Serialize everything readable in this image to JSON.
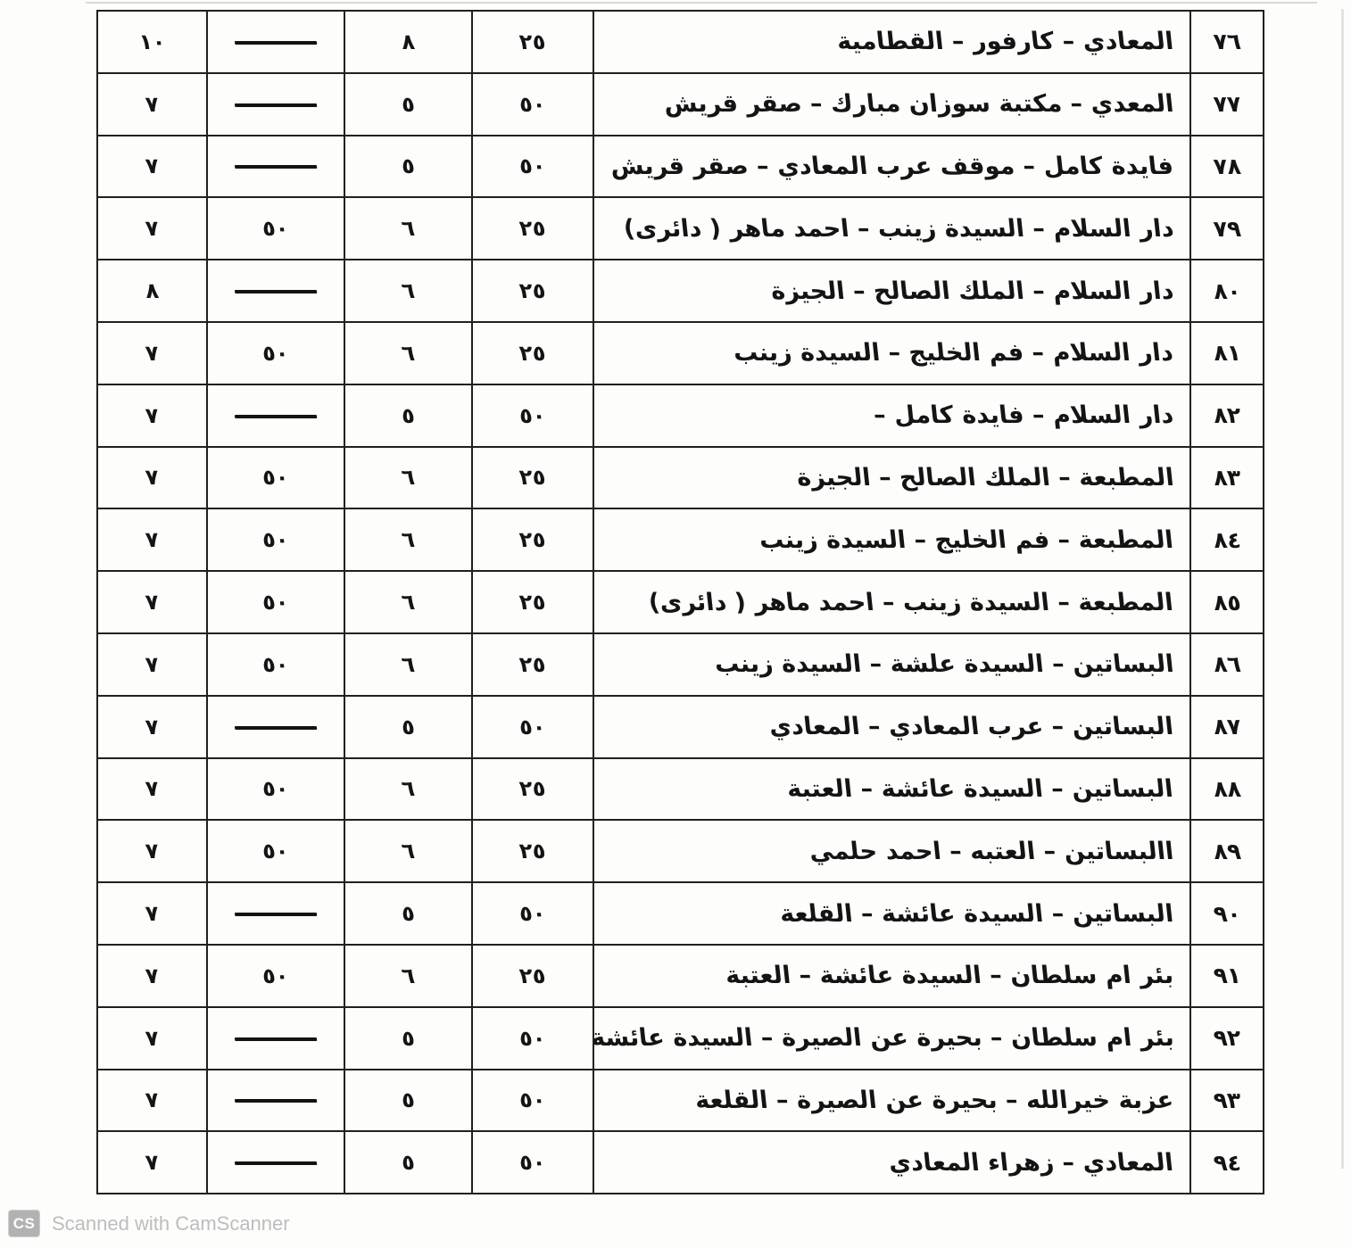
{
  "page": {
    "background_color": "#fdfdfc",
    "table_border_color": "#222018",
    "text_color": "#141414",
    "watermark_color": "#bdbdbd"
  },
  "table": {
    "direction": "rtl",
    "columns": [
      "row_number",
      "route_name",
      "value_1",
      "value_2",
      "value_3",
      "value_4"
    ],
    "dash_symbol": "—",
    "rows": [
      {
        "no": "٧٦",
        "route": "المعادي – كارفور – القطامية",
        "v1": "٢٥",
        "v2": "٨",
        "v3": "—",
        "v4": "١٠"
      },
      {
        "no": "٧٧",
        "route": "المعدي – مكتبة سوزان مبارك – صقر قريش",
        "v1": "٥٠",
        "v2": "٥",
        "v3": "—",
        "v4": "٧"
      },
      {
        "no": "٧٨",
        "route": "فايدة كامل – موقف عرب المعادي – صقر قريش",
        "v1": "٥٠",
        "v2": "٥",
        "v3": "—",
        "v4": "٧"
      },
      {
        "no": "٧٩",
        "route": "دار السلام – السيدة زينب – احمد ماهر ( دائرى)",
        "v1": "٢٥",
        "v2": "٦",
        "v3": "٥٠",
        "v4": "٧"
      },
      {
        "no": "٨٠",
        "route": "دار السلام – الملك الصالح – الجيزة",
        "v1": "٢٥",
        "v2": "٦",
        "v3": "—",
        "v4": "٨"
      },
      {
        "no": "٨١",
        "route": "دار السلام – فم الخليج – السيدة زينب",
        "v1": "٢٥",
        "v2": "٦",
        "v3": "٥٠",
        "v4": "٧"
      },
      {
        "no": "٨٢",
        "route": "دار السلام – فايدة كامل –",
        "v1": "٥٠",
        "v2": "٥",
        "v3": "—",
        "v4": "٧"
      },
      {
        "no": "٨٣",
        "route": "المطبعة – الملك الصالح – الجيزة",
        "v1": "٢٥",
        "v2": "٦",
        "v3": "٥٠",
        "v4": "٧"
      },
      {
        "no": "٨٤",
        "route": "المطبعة – فم الخليج – السيدة زينب",
        "v1": "٢٥",
        "v2": "٦",
        "v3": "٥٠",
        "v4": "٧"
      },
      {
        "no": "٨٥",
        "route": "المطبعة – السيدة زينب – احمد ماهر ( دائرى)",
        "v1": "٢٥",
        "v2": "٦",
        "v3": "٥٠",
        "v4": "٧"
      },
      {
        "no": "٨٦",
        "route": "البساتين – السيدة علشة – السيدة زينب",
        "v1": "٢٥",
        "v2": "٦",
        "v3": "٥٠",
        "v4": "٧"
      },
      {
        "no": "٨٧",
        "route": "البساتين – عرب المعادي – المعادي",
        "v1": "٥٠",
        "v2": "٥",
        "v3": "—",
        "v4": "٧"
      },
      {
        "no": "٨٨",
        "route": "البساتين – السيدة عائشة – العتبة",
        "v1": "٢٥",
        "v2": "٦",
        "v3": "٥٠",
        "v4": "٧"
      },
      {
        "no": "٨٩",
        "route": "االبساتين – العتبه – احمد حلمي",
        "v1": "٢٥",
        "v2": "٦",
        "v3": "٥٠",
        "v4": "٧"
      },
      {
        "no": "٩٠",
        "route": "البساتين – السيدة عائشة – القلعة",
        "v1": "٥٠",
        "v2": "٥",
        "v3": "—",
        "v4": "٧"
      },
      {
        "no": "٩١",
        "route": "بئر ام سلطان – السيدة عائشة – العتبة",
        "v1": "٢٥",
        "v2": "٦",
        "v3": "٥٠",
        "v4": "٧"
      },
      {
        "no": "٩٢",
        "route": "بئر ام سلطان – بحيرة عن الصيرة – السيدة عائشة",
        "v1": "٥٠",
        "v2": "٥",
        "v3": "—",
        "v4": "٧"
      },
      {
        "no": "٩٣",
        "route": "عزبة خيرالله – بحيرة عن الصيرة – القلعة",
        "v1": "٥٠",
        "v2": "٥",
        "v3": "—",
        "v4": "٧"
      },
      {
        "no": "٩٤",
        "route": "المعادي – زهراء المعادي",
        "v1": "٥٠",
        "v2": "٥",
        "v3": "—",
        "v4": "٧"
      }
    ]
  },
  "footer": {
    "badge_text": "CS",
    "watermark_text": "Scanned with CamScanner"
  }
}
